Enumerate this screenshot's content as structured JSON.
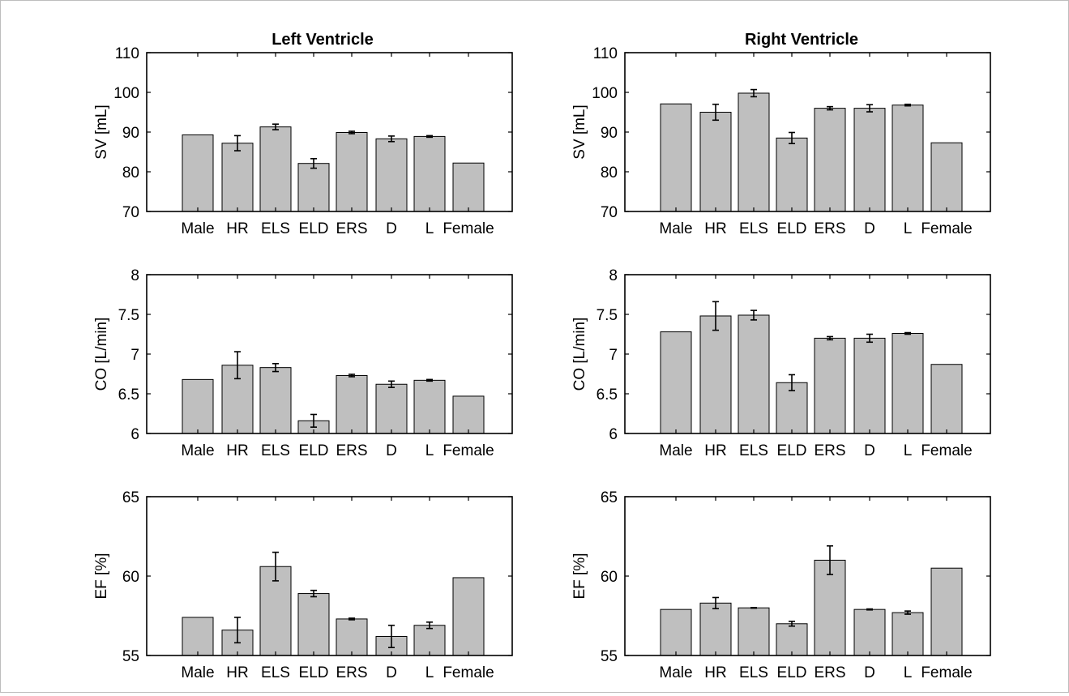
{
  "columns": [
    "Left Ventricle",
    "Right Ventricle"
  ],
  "colors": {
    "bar_fill": "#bfbfbf",
    "bar_stroke": "#000000",
    "axis": "#000000",
    "error_bar": "#000000"
  },
  "chart_data": [
    {
      "type": "bar",
      "title": "Left Ventricle",
      "xlabel": "",
      "ylabel": "SV [mL]",
      "ylim": [
        70,
        110
      ],
      "yticks": [
        70,
        80,
        90,
        100,
        110
      ],
      "categories": [
        "Male",
        "HR",
        "ELS",
        "ELD",
        "ERS",
        "D",
        "L",
        "Female"
      ],
      "values": [
        89.3,
        87.2,
        91.3,
        82.1,
        89.9,
        88.3,
        88.9,
        82.2
      ],
      "errors": [
        null,
        1.9,
        0.7,
        1.2,
        0.3,
        0.7,
        0.2,
        null
      ]
    },
    {
      "type": "bar",
      "title": "Right Ventricle",
      "xlabel": "",
      "ylabel": "SV [mL]",
      "ylim": [
        70,
        110
      ],
      "yticks": [
        70,
        80,
        90,
        100,
        110
      ],
      "categories": [
        "Male",
        "HR",
        "ELS",
        "ELD",
        "ERS",
        "D",
        "L",
        "Female"
      ],
      "values": [
        97.1,
        95.0,
        99.8,
        88.5,
        96.0,
        96.0,
        96.8,
        87.3
      ],
      "errors": [
        null,
        2.0,
        0.9,
        1.4,
        0.4,
        0.9,
        0.2,
        null
      ]
    },
    {
      "type": "bar",
      "title": "",
      "xlabel": "",
      "ylabel": "CO [L/min]",
      "ylim": [
        6,
        8
      ],
      "yticks": [
        6,
        6.5,
        7,
        7.5,
        8
      ],
      "categories": [
        "Male",
        "HR",
        "ELS",
        "ELD",
        "ERS",
        "D",
        "L",
        "Female"
      ],
      "values": [
        6.68,
        6.86,
        6.83,
        6.16,
        6.73,
        6.62,
        6.67,
        6.47
      ],
      "errors": [
        null,
        0.17,
        0.05,
        0.08,
        0.015,
        0.04,
        0.01,
        null
      ]
    },
    {
      "type": "bar",
      "title": "",
      "xlabel": "",
      "ylabel": "CO [L/min]",
      "ylim": [
        6,
        8
      ],
      "yticks": [
        6,
        6.5,
        7,
        7.5,
        8
      ],
      "categories": [
        "Male",
        "HR",
        "ELS",
        "ELD",
        "ERS",
        "D",
        "L",
        "Female"
      ],
      "values": [
        7.28,
        7.48,
        7.49,
        6.64,
        7.2,
        7.2,
        7.26,
        6.87
      ],
      "errors": [
        null,
        0.18,
        0.06,
        0.1,
        0.02,
        0.05,
        0.01,
        null
      ]
    },
    {
      "type": "bar",
      "title": "",
      "xlabel": "",
      "ylabel": "EF [%]",
      "ylim": [
        55,
        65
      ],
      "yticks": [
        55,
        60,
        65
      ],
      "categories": [
        "Male",
        "HR",
        "ELS",
        "ELD",
        "ERS",
        "D",
        "L",
        "Female"
      ],
      "values": [
        57.4,
        56.6,
        60.6,
        58.9,
        57.3,
        56.2,
        56.9,
        59.9
      ],
      "errors": [
        null,
        0.8,
        0.9,
        0.2,
        0.05,
        0.7,
        0.2,
        null
      ]
    },
    {
      "type": "bar",
      "title": "",
      "xlabel": "",
      "ylabel": "EF [%]",
      "ylim": [
        55,
        65
      ],
      "yticks": [
        55,
        60,
        65
      ],
      "categories": [
        "Male",
        "HR",
        "ELS",
        "ELD",
        "ERS",
        "D",
        "L",
        "Female"
      ],
      "values": [
        57.9,
        58.3,
        58.0,
        57.0,
        61.0,
        57.9,
        57.7,
        60.5
      ],
      "errors": [
        null,
        0.35,
        0.02,
        0.15,
        0.9,
        0.03,
        0.1,
        null
      ]
    }
  ]
}
